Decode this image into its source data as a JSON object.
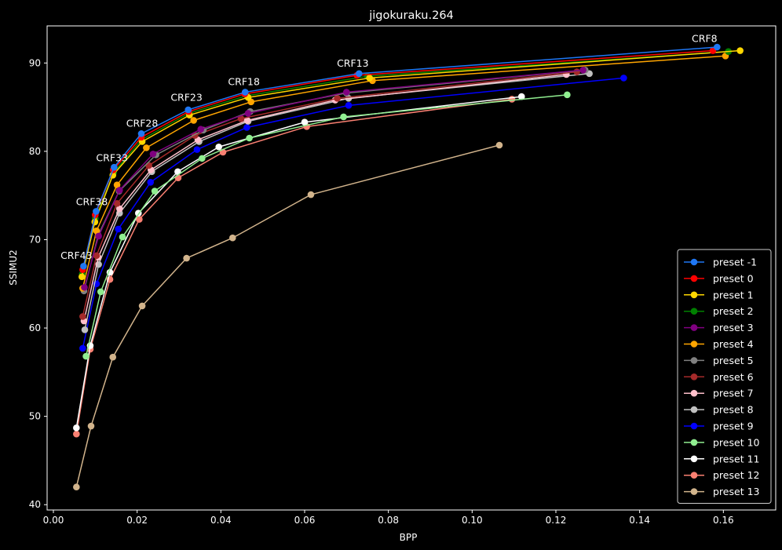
{
  "chart_data": {
    "type": "line",
    "title": "jigokuraku.264",
    "xlabel": "BPP",
    "ylabel": "SSIMU2",
    "xlim": [
      -0.0015,
      0.1725
    ],
    "ylim": [
      39.4,
      94.2
    ],
    "xticks": [
      0.0,
      0.02,
      0.04,
      0.06,
      0.08,
      0.1,
      0.12,
      0.14,
      0.16
    ],
    "xtick_labels": [
      "0.00",
      "0.02",
      "0.04",
      "0.06",
      "0.08",
      "0.10",
      "0.12",
      "0.14",
      "0.16"
    ],
    "yticks": [
      40,
      50,
      60,
      70,
      80,
      90
    ],
    "ytick_labels": [
      "40",
      "50",
      "60",
      "70",
      "80",
      "90"
    ],
    "grid": false,
    "legend_position": "bottom-right",
    "annotations": [
      {
        "text": "CRF8",
        "x": 0.1555,
        "y": 92.4
      },
      {
        "text": "CRF13",
        "x": 0.0715,
        "y": 89.6
      },
      {
        "text": "CRF18",
        "x": 0.0455,
        "y": 87.5
      },
      {
        "text": "CRF23",
        "x": 0.0318,
        "y": 85.7
      },
      {
        "text": "CRF28",
        "x": 0.0212,
        "y": 82.8
      },
      {
        "text": "CRF33",
        "x": 0.014,
        "y": 78.9
      },
      {
        "text": "CRF38",
        "x": 0.0092,
        "y": 73.9
      },
      {
        "text": "CRF43",
        "x": 0.0055,
        "y": 67.8
      }
    ],
    "series": [
      {
        "name": "preset -1",
        "color": "#1f77f4",
        "points": [
          [
            0.0072,
            67.0
          ],
          [
            0.0102,
            73.2
          ],
          [
            0.0145,
            78.2
          ],
          [
            0.021,
            82.0
          ],
          [
            0.0322,
            84.7
          ],
          [
            0.0458,
            86.7
          ],
          [
            0.073,
            88.8
          ],
          [
            0.1585,
            91.8
          ]
        ]
      },
      {
        "name": "preset 0",
        "color": "#ff0000",
        "points": [
          [
            0.007,
            66.6
          ],
          [
            0.01,
            72.8
          ],
          [
            0.0143,
            77.9
          ],
          [
            0.021,
            81.6
          ],
          [
            0.0323,
            84.5
          ],
          [
            0.0457,
            86.5
          ],
          [
            0.0725,
            88.6
          ],
          [
            0.1575,
            91.4
          ]
        ]
      },
      {
        "name": "preset 1",
        "color": "#ffd700",
        "points": [
          [
            0.0068,
            65.8
          ],
          [
            0.0099,
            72.0
          ],
          [
            0.0142,
            77.3
          ],
          [
            0.0212,
            81.1
          ],
          [
            0.0325,
            84.1
          ],
          [
            0.0465,
            86.1
          ],
          [
            0.0755,
            88.3
          ],
          [
            0.164,
            91.4
          ]
        ]
      },
      {
        "name": "preset 2",
        "color": "#008000",
        "points": [
          [
            0.0069,
            66.1
          ],
          [
            0.01,
            72.4
          ],
          [
            0.0144,
            77.6
          ],
          [
            0.021,
            81.3
          ],
          [
            0.0323,
            84.3
          ],
          [
            0.0462,
            86.3
          ],
          [
            0.075,
            88.5
          ],
          [
            0.1612,
            91.3
          ]
        ]
      },
      {
        "name": "preset 3",
        "color": "#800080",
        "points": [
          [
            0.0074,
            64.6
          ],
          [
            0.0108,
            70.4
          ],
          [
            0.0158,
            75.6
          ],
          [
            0.0238,
            79.7
          ],
          [
            0.0352,
            82.5
          ],
          [
            0.0465,
            84.3
          ],
          [
            0.07,
            86.7
          ],
          [
            0.1265,
            89.2
          ]
        ]
      },
      {
        "name": "preset 4",
        "color": "#ffa500",
        "points": [
          [
            0.007,
            64.5
          ],
          [
            0.0103,
            71.0
          ],
          [
            0.0152,
            76.2
          ],
          [
            0.0222,
            80.4
          ],
          [
            0.0335,
            83.5
          ],
          [
            0.0472,
            85.6
          ],
          [
            0.0762,
            88.0
          ],
          [
            0.1605,
            90.8
          ]
        ]
      },
      {
        "name": "preset 5",
        "color": "#808080",
        "points": [
          [
            0.0073,
            64.2
          ],
          [
            0.0107,
            70.5
          ],
          [
            0.0157,
            75.5
          ],
          [
            0.0245,
            79.6
          ],
          [
            0.0358,
            82.4
          ],
          [
            0.047,
            84.5
          ],
          [
            0.07,
            86.6
          ],
          [
            0.127,
            89.2
          ]
        ]
      },
      {
        "name": "preset 6",
        "color": "#a52a2a",
        "points": [
          [
            0.007,
            61.3
          ],
          [
            0.0103,
            68.2
          ],
          [
            0.0152,
            74.1
          ],
          [
            0.0228,
            78.4
          ],
          [
            0.0338,
            81.8
          ],
          [
            0.0448,
            83.7
          ],
          [
            0.0678,
            86.0
          ],
          [
            0.125,
            89.0
          ]
        ]
      },
      {
        "name": "preset 7",
        "color": "#ffc0cb",
        "points": [
          [
            0.0073,
            60.8
          ],
          [
            0.0107,
            68.0
          ],
          [
            0.0158,
            73.5
          ],
          [
            0.0233,
            77.9
          ],
          [
            0.0345,
            81.3
          ],
          [
            0.0463,
            83.5
          ],
          [
            0.0673,
            85.8
          ],
          [
            0.1225,
            88.7
          ]
        ]
      },
      {
        "name": "preset 8",
        "color": "#c0c0c0",
        "points": [
          [
            0.0075,
            59.8
          ],
          [
            0.0108,
            67.2
          ],
          [
            0.0158,
            73.0
          ],
          [
            0.0235,
            77.7
          ],
          [
            0.0348,
            81.1
          ],
          [
            0.0465,
            83.4
          ],
          [
            0.0705,
            86.0
          ],
          [
            0.128,
            88.8
          ]
        ]
      },
      {
        "name": "preset 9",
        "color": "#0000ff",
        "points": [
          [
            0.007,
            57.7
          ],
          [
            0.0103,
            65.0
          ],
          [
            0.0155,
            71.2
          ],
          [
            0.0232,
            76.5
          ],
          [
            0.0343,
            80.2
          ],
          [
            0.0462,
            82.7
          ],
          [
            0.0705,
            85.2
          ],
          [
            0.1362,
            88.3
          ]
        ]
      },
      {
        "name": "preset 10",
        "color": "#90ee90",
        "points": [
          [
            0.0078,
            56.8
          ],
          [
            0.0113,
            64.1
          ],
          [
            0.0165,
            70.3
          ],
          [
            0.0242,
            75.5
          ],
          [
            0.0355,
            79.2
          ],
          [
            0.0468,
            81.5
          ],
          [
            0.0693,
            83.9
          ],
          [
            0.1227,
            86.4
          ]
        ]
      },
      {
        "name": "preset 11",
        "color": "#ffffff",
        "points": [
          [
            0.0055,
            48.7
          ],
          [
            0.0088,
            58.0
          ],
          [
            0.0135,
            66.3
          ],
          [
            0.0203,
            73.0
          ],
          [
            0.0297,
            77.7
          ],
          [
            0.0395,
            80.5
          ],
          [
            0.06,
            83.3
          ],
          [
            0.1118,
            86.2
          ]
        ]
      },
      {
        "name": "preset 12",
        "color": "#fa8072",
        "points": [
          [
            0.0055,
            48.0
          ],
          [
            0.0088,
            57.6
          ],
          [
            0.0135,
            65.5
          ],
          [
            0.0205,
            72.3
          ],
          [
            0.0298,
            77.0
          ],
          [
            0.0405,
            79.9
          ],
          [
            0.0605,
            82.8
          ],
          [
            0.1095,
            85.9
          ]
        ]
      },
      {
        "name": "preset 13",
        "color": "#d2b48c",
        "points": [
          [
            0.0055,
            42.0
          ],
          [
            0.009,
            48.9
          ],
          [
            0.0142,
            56.7
          ],
          [
            0.0212,
            62.5
          ],
          [
            0.0318,
            67.9
          ],
          [
            0.0428,
            70.2
          ],
          [
            0.0615,
            75.1
          ],
          [
            0.1065,
            80.7
          ]
        ]
      }
    ]
  }
}
